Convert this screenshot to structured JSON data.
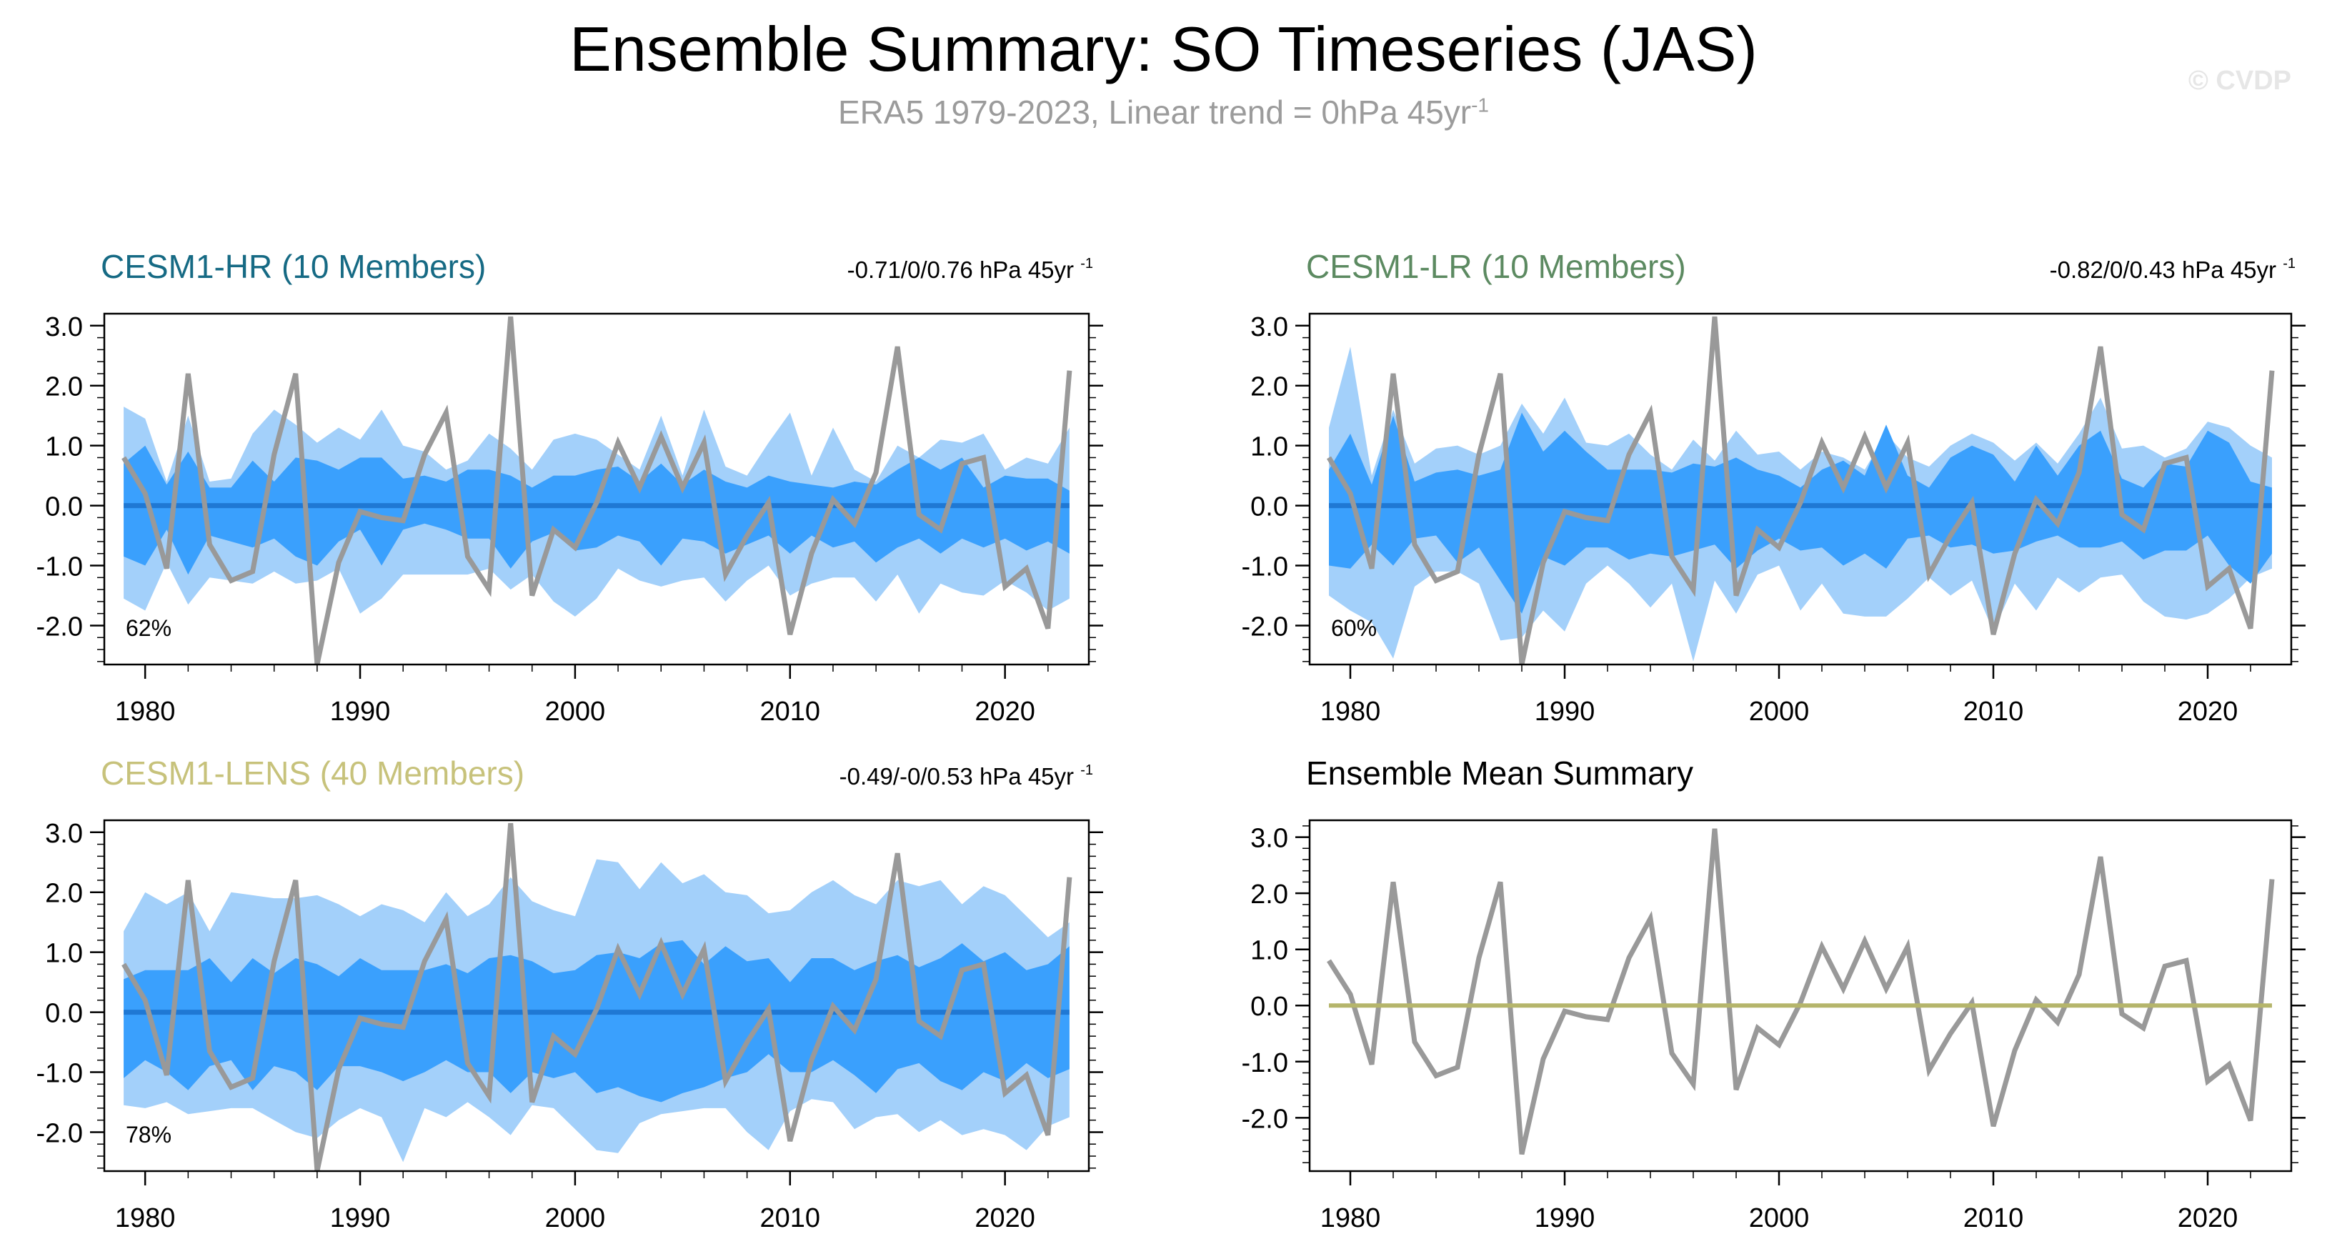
{
  "title": "Ensemble Summary: SO Timeseries (JAS)",
  "subtitle": {
    "text": "ERA5 1979-2023, Linear trend = 0hPa 45yr",
    "superscript": "-1"
  },
  "watermark": "© CVDP",
  "colors": {
    "observed_line": "#999999",
    "band_outer": "#a3d0fa",
    "band_inner": "#3aa0fd",
    "ensemble_median": "#1f78d4",
    "mean_summary_line": "#b5b56b",
    "title_hr": "#166a84",
    "title_lr": "#5c8a61",
    "title_lens": "#c7c27b"
  },
  "chart_data": [
    {
      "type": "area",
      "title": "CESM1-HR (10 Members)",
      "title_color": "#166a84",
      "trend_label": "-0.71/0/0.76 hPa 45yr",
      "trend_superscript": "-1",
      "percent_label": "62%",
      "x": [
        1979,
        1980,
        1981,
        1982,
        1983,
        1984,
        1985,
        1986,
        1987,
        1988,
        1989,
        1990,
        1991,
        1992,
        1993,
        1994,
        1995,
        1996,
        1997,
        1998,
        1999,
        2000,
        2001,
        2002,
        2003,
        2004,
        2005,
        2006,
        2007,
        2008,
        2009,
        2010,
        2011,
        2012,
        2013,
        2014,
        2015,
        2016,
        2017,
        2018,
        2019,
        2020,
        2021,
        2022,
        2023
      ],
      "xticks": [
        1980,
        1990,
        2000,
        2010,
        2020
      ],
      "yticks": [
        3.0,
        2.0,
        1.0,
        0.0,
        -1.0,
        -2.0
      ],
      "ytick_labels": [
        "3.0",
        "2.0",
        "1.0",
        "0.0",
        "-1.0",
        "-2.0"
      ],
      "ylim": [
        -2.65,
        3.2
      ],
      "xlim": [
        1978.1,
        2023.9
      ],
      "observed": [
        0.8,
        0.2,
        -1.05,
        2.2,
        -0.65,
        -1.25,
        -1.1,
        0.85,
        2.2,
        -2.65,
        -0.95,
        -0.1,
        -0.2,
        -0.25,
        0.85,
        1.55,
        -0.85,
        -1.4,
        3.15,
        -1.5,
        -0.4,
        -0.7,
        0.05,
        1.05,
        0.3,
        1.15,
        0.3,
        1.05,
        -1.15,
        -0.5,
        0.05,
        -2.15,
        -0.8,
        0.1,
        -0.3,
        0.55,
        2.65,
        -0.15,
        -0.4,
        0.7,
        0.8,
        -1.35,
        -1.05,
        -2.05,
        2.25
      ],
      "outer_upper": [
        1.65,
        1.45,
        0.4,
        1.5,
        0.4,
        0.45,
        1.2,
        1.6,
        1.35,
        1.05,
        1.3,
        1.1,
        1.6,
        1.0,
        0.9,
        0.6,
        0.75,
        1.2,
        0.95,
        0.6,
        1.1,
        1.2,
        1.1,
        0.85,
        0.6,
        1.5,
        0.5,
        1.6,
        0.65,
        0.5,
        1.05,
        1.55,
        0.5,
        1.3,
        0.6,
        0.4,
        1.0,
        0.8,
        1.1,
        1.05,
        1.2,
        0.6,
        0.8,
        0.7,
        1.3
      ],
      "inner_upper": [
        0.7,
        1.0,
        0.35,
        0.9,
        0.3,
        0.3,
        0.75,
        0.4,
        0.8,
        0.75,
        0.6,
        0.8,
        0.8,
        0.45,
        0.5,
        0.4,
        0.6,
        0.6,
        0.5,
        0.3,
        0.5,
        0.5,
        0.6,
        0.65,
        0.4,
        0.7,
        0.35,
        0.6,
        0.4,
        0.3,
        0.5,
        0.4,
        0.35,
        0.3,
        0.4,
        0.35,
        0.6,
        0.8,
        0.6,
        0.8,
        0.3,
        0.5,
        0.45,
        0.45,
        0.25
      ],
      "median": [
        0,
        0,
        0,
        0,
        0,
        0,
        0,
        0,
        0,
        0,
        0,
        0,
        0,
        0,
        0,
        0,
        0,
        0,
        0,
        0,
        0,
        0,
        0,
        0,
        0,
        0,
        0,
        0,
        0,
        0,
        0,
        0,
        0,
        0,
        0,
        0,
        0,
        0,
        0,
        0,
        0,
        0,
        0,
        0,
        0
      ],
      "inner_lower": [
        -0.85,
        -1.0,
        -0.4,
        -1.15,
        -0.5,
        -0.6,
        -0.7,
        -0.55,
        -0.85,
        -1.0,
        -0.6,
        -0.4,
        -1.0,
        -0.4,
        -0.3,
        -0.4,
        -0.55,
        -0.55,
        -1.05,
        -0.6,
        -0.45,
        -0.75,
        -0.7,
        -0.5,
        -0.6,
        -1.0,
        -0.55,
        -0.6,
        -0.8,
        -0.65,
        -0.5,
        -0.8,
        -0.5,
        -0.7,
        -0.6,
        -0.95,
        -0.7,
        -0.55,
        -0.8,
        -0.55,
        -0.7,
        -0.55,
        -0.75,
        -0.6,
        -0.8
      ],
      "outer_lower": [
        -1.55,
        -1.75,
        -0.95,
        -1.65,
        -1.2,
        -1.25,
        -1.3,
        -1.1,
        -1.3,
        -1.25,
        -1.05,
        -1.8,
        -1.55,
        -1.15,
        -1.15,
        -1.15,
        -1.15,
        -1.05,
        -1.4,
        -1.15,
        -1.6,
        -1.85,
        -1.55,
        -1.05,
        -1.25,
        -1.35,
        -1.25,
        -1.2,
        -1.6,
        -1.25,
        -1.0,
        -1.5,
        -1.3,
        -1.2,
        -1.2,
        -1.6,
        -1.15,
        -1.8,
        -1.3,
        -1.45,
        -1.5,
        -1.25,
        -1.45,
        -1.75,
        -1.55
      ]
    },
    {
      "type": "area",
      "title": "CESM1-LR (10 Members)",
      "title_color": "#5c8a61",
      "trend_label": "-0.82/0/0.43 hPa 45yr",
      "trend_superscript": "-1",
      "percent_label": "60%",
      "x": [
        1979,
        1980,
        1981,
        1982,
        1983,
        1984,
        1985,
        1986,
        1987,
        1988,
        1989,
        1990,
        1991,
        1992,
        1993,
        1994,
        1995,
        1996,
        1997,
        1998,
        1999,
        2000,
        2001,
        2002,
        2003,
        2004,
        2005,
        2006,
        2007,
        2008,
        2009,
        2010,
        2011,
        2012,
        2013,
        2014,
        2015,
        2016,
        2017,
        2018,
        2019,
        2020,
        2021,
        2022,
        2023
      ],
      "xticks": [
        1980,
        1990,
        2000,
        2010,
        2020
      ],
      "yticks": [
        3.0,
        2.0,
        1.0,
        0.0,
        -1.0,
        -2.0
      ],
      "ytick_labels": [
        "3.0",
        "2.0",
        "1.0",
        "0.0",
        "-1.0",
        "-2.0"
      ],
      "ylim": [
        -2.65,
        3.2
      ],
      "xlim": [
        1978.1,
        2023.9
      ],
      "observed": [
        0.8,
        0.2,
        -1.05,
        2.2,
        -0.65,
        -1.25,
        -1.1,
        0.85,
        2.2,
        -2.65,
        -0.95,
        -0.1,
        -0.2,
        -0.25,
        0.85,
        1.55,
        -0.85,
        -1.4,
        3.15,
        -1.5,
        -0.4,
        -0.7,
        0.05,
        1.05,
        0.3,
        1.15,
        0.3,
        1.05,
        -1.15,
        -0.5,
        0.05,
        -2.15,
        -0.8,
        0.1,
        -0.3,
        0.55,
        2.65,
        -0.15,
        -0.4,
        0.7,
        0.8,
        -1.35,
        -1.05,
        -2.05,
        2.25
      ],
      "outer_upper": [
        1.3,
        2.65,
        0.5,
        1.6,
        0.7,
        0.95,
        1.0,
        0.85,
        1.0,
        1.7,
        1.2,
        1.8,
        1.05,
        1.0,
        1.2,
        0.85,
        0.6,
        1.1,
        0.75,
        1.25,
        0.85,
        0.9,
        0.6,
        0.9,
        0.8,
        0.6,
        1.2,
        0.8,
        0.65,
        1.0,
        1.2,
        1.05,
        0.75,
        1.05,
        0.7,
        1.2,
        1.8,
        0.95,
        1.0,
        0.8,
        0.95,
        1.4,
        1.3,
        1.0,
        0.8
      ],
      "inner_upper": [
        0.6,
        1.2,
        0.35,
        1.5,
        0.4,
        0.55,
        0.6,
        0.5,
        0.6,
        1.55,
        0.9,
        1.25,
        0.9,
        0.6,
        0.6,
        0.6,
        0.55,
        0.7,
        0.65,
        0.8,
        0.6,
        0.5,
        0.3,
        0.6,
        0.75,
        0.5,
        1.35,
        0.5,
        0.3,
        0.8,
        1.0,
        0.85,
        0.4,
        1.0,
        0.5,
        1.0,
        1.25,
        0.45,
        0.3,
        0.7,
        0.65,
        1.25,
        1.05,
        0.4,
        0.3
      ],
      "median": [
        0,
        0,
        0,
        0,
        0,
        0,
        0,
        0,
        0,
        0,
        0,
        0,
        0,
        0,
        0,
        0,
        0,
        0,
        0,
        0,
        0,
        0,
        0,
        0,
        0,
        0,
        0,
        0,
        0,
        0,
        0,
        0,
        0,
        0,
        0,
        0,
        0,
        0,
        0,
        0,
        0,
        0,
        0,
        0,
        0
      ],
      "inner_lower": [
        -1.0,
        -1.05,
        -0.65,
        -1.0,
        -0.55,
        -0.5,
        -0.95,
        -0.7,
        -1.25,
        -1.8,
        -0.85,
        -1.0,
        -0.7,
        -0.7,
        -0.9,
        -0.8,
        -0.85,
        -0.75,
        -0.65,
        -1.05,
        -0.75,
        -0.55,
        -0.75,
        -0.7,
        -1.0,
        -0.8,
        -1.05,
        -0.55,
        -0.5,
        -0.7,
        -0.65,
        -0.8,
        -0.75,
        -0.6,
        -0.5,
        -0.7,
        -0.7,
        -0.6,
        -0.9,
        -0.75,
        -0.75,
        -0.5,
        -1.0,
        -1.3,
        -0.8
      ],
      "outer_lower": [
        -1.5,
        -1.75,
        -1.95,
        -2.55,
        -1.35,
        -1.1,
        -1.1,
        -1.3,
        -2.25,
        -2.2,
        -1.75,
        -2.1,
        -1.3,
        -1.0,
        -1.3,
        -1.7,
        -1.3,
        -2.6,
        -1.25,
        -1.8,
        -1.15,
        -1.0,
        -1.75,
        -1.3,
        -1.8,
        -1.85,
        -1.85,
        -1.55,
        -1.2,
        -1.5,
        -1.25,
        -2.1,
        -1.3,
        -1.75,
        -1.2,
        -1.45,
        -1.2,
        -1.15,
        -1.6,
        -1.85,
        -1.9,
        -1.8,
        -1.55,
        -1.2,
        -1.05
      ]
    },
    {
      "type": "area",
      "title": "CESM1-LENS (40 Members)",
      "title_color": "#c7c27b",
      "trend_label": "-0.49/-0/0.53 hPa 45yr",
      "trend_superscript": "-1",
      "percent_label": "78%",
      "x": [
        1979,
        1980,
        1981,
        1982,
        1983,
        1984,
        1985,
        1986,
        1987,
        1988,
        1989,
        1990,
        1991,
        1992,
        1993,
        1994,
        1995,
        1996,
        1997,
        1998,
        1999,
        2000,
        2001,
        2002,
        2003,
        2004,
        2005,
        2006,
        2007,
        2008,
        2009,
        2010,
        2011,
        2012,
        2013,
        2014,
        2015,
        2016,
        2017,
        2018,
        2019,
        2020,
        2021,
        2022,
        2023
      ],
      "xticks": [
        1980,
        1990,
        2000,
        2010,
        2020
      ],
      "yticks": [
        3.0,
        2.0,
        1.0,
        0.0,
        -1.0,
        -2.0
      ],
      "ytick_labels": [
        "3.0",
        "2.0",
        "1.0",
        "0.0",
        "-1.0",
        "-2.0"
      ],
      "ylim": [
        -2.65,
        3.2
      ],
      "xlim": [
        1978.1,
        2023.9
      ],
      "observed": [
        0.8,
        0.2,
        -1.05,
        2.2,
        -0.65,
        -1.25,
        -1.1,
        0.85,
        2.2,
        -2.65,
        -0.95,
        -0.1,
        -0.2,
        -0.25,
        0.85,
        1.55,
        -0.85,
        -1.4,
        3.15,
        -1.5,
        -0.4,
        -0.7,
        0.05,
        1.05,
        0.3,
        1.15,
        0.3,
        1.05,
        -1.15,
        -0.5,
        0.05,
        -2.15,
        -0.8,
        0.1,
        -0.3,
        0.55,
        2.65,
        -0.15,
        -0.4,
        0.7,
        0.8,
        -1.35,
        -1.05,
        -2.05,
        2.25
      ],
      "outer_upper": [
        1.35,
        2.0,
        1.8,
        2.0,
        1.35,
        2.0,
        1.95,
        1.9,
        1.9,
        1.95,
        1.8,
        1.6,
        1.8,
        1.7,
        1.5,
        2.0,
        1.6,
        1.8,
        2.25,
        1.85,
        1.7,
        1.6,
        2.55,
        2.5,
        2.05,
        2.5,
        2.15,
        2.3,
        2.0,
        1.95,
        1.65,
        1.7,
        2.0,
        2.2,
        1.95,
        1.8,
        2.2,
        2.1,
        2.2,
        1.8,
        2.1,
        1.95,
        1.6,
        1.25,
        1.5
      ],
      "inner_upper": [
        0.55,
        0.7,
        0.7,
        0.7,
        0.9,
        0.5,
        0.9,
        0.65,
        0.9,
        0.8,
        0.6,
        0.9,
        0.7,
        0.7,
        0.7,
        0.8,
        0.65,
        0.9,
        0.95,
        0.85,
        0.65,
        0.7,
        0.95,
        1.0,
        0.9,
        1.15,
        1.2,
        0.8,
        1.1,
        0.85,
        0.9,
        0.5,
        0.9,
        0.9,
        0.7,
        0.85,
        0.95,
        0.75,
        0.9,
        1.15,
        0.85,
        1.0,
        0.7,
        0.8,
        1.1
      ],
      "median": [
        0,
        0,
        0,
        0,
        0,
        0,
        0,
        0,
        0,
        0,
        0,
        0,
        0,
        0,
        0,
        0,
        0,
        0,
        0,
        0,
        0,
        0,
        0,
        0,
        0,
        0,
        0,
        0,
        0,
        0,
        0,
        0,
        0,
        0,
        0,
        0,
        0,
        0,
        0,
        0,
        0,
        0,
        0,
        0,
        0
      ],
      "inner_lower": [
        -1.1,
        -0.8,
        -1.0,
        -1.3,
        -0.9,
        -0.8,
        -1.3,
        -0.9,
        -1.0,
        -1.3,
        -0.9,
        -0.9,
        -1.0,
        -1.15,
        -1.0,
        -0.8,
        -1.0,
        -1.0,
        -1.35,
        -1.0,
        -1.1,
        -1.0,
        -1.35,
        -1.25,
        -1.4,
        -1.5,
        -1.35,
        -1.25,
        -1.1,
        -1.0,
        -0.7,
        -1.0,
        -1.0,
        -0.8,
        -1.05,
        -1.35,
        -0.95,
        -0.85,
        -1.15,
        -1.3,
        -1.0,
        -1.15,
        -0.85,
        -1.1,
        -0.95
      ],
      "outer_lower": [
        -1.55,
        -1.6,
        -1.5,
        -1.7,
        -1.65,
        -1.6,
        -1.6,
        -1.8,
        -2.0,
        -2.1,
        -1.8,
        -1.6,
        -1.75,
        -2.5,
        -1.6,
        -1.75,
        -1.5,
        -1.75,
        -2.05,
        -1.55,
        -1.6,
        -1.95,
        -2.3,
        -2.35,
        -1.85,
        -1.7,
        -1.65,
        -1.6,
        -1.6,
        -2.0,
        -2.3,
        -1.65,
        -1.45,
        -1.5,
        -1.95,
        -1.75,
        -1.7,
        -2.0,
        -1.8,
        -2.05,
        -1.95,
        -2.05,
        -2.3,
        -1.9,
        -1.75
      ]
    },
    {
      "type": "line",
      "title": "Ensemble Mean Summary",
      "title_color": "#000000",
      "x": [
        1979,
        1980,
        1981,
        1982,
        1983,
        1984,
        1985,
        1986,
        1987,
        1988,
        1989,
        1990,
        1991,
        1992,
        1993,
        1994,
        1995,
        1996,
        1997,
        1998,
        1999,
        2000,
        2001,
        2002,
        2003,
        2004,
        2005,
        2006,
        2007,
        2008,
        2009,
        2010,
        2011,
        2012,
        2013,
        2014,
        2015,
        2016,
        2017,
        2018,
        2019,
        2020,
        2021,
        2022,
        2023
      ],
      "xticks": [
        1980,
        1990,
        2000,
        2010,
        2020
      ],
      "yticks": [
        3.0,
        2.0,
        1.0,
        0.0,
        -1.0,
        -2.0
      ],
      "ytick_labels": [
        "3.0",
        "2.0",
        "1.0",
        "0.0",
        "-1.0",
        "-2.0"
      ],
      "ylim": [
        -2.95,
        3.3
      ],
      "xlim": [
        1978.1,
        2023.9
      ],
      "observed": [
        0.8,
        0.2,
        -1.05,
        2.2,
        -0.65,
        -1.25,
        -1.1,
        0.85,
        2.2,
        -2.65,
        -0.95,
        -0.1,
        -0.2,
        -0.25,
        0.85,
        1.55,
        -0.85,
        -1.4,
        3.15,
        -1.5,
        -0.4,
        -0.7,
        0.05,
        1.05,
        0.3,
        1.15,
        0.3,
        1.05,
        -1.15,
        -0.5,
        0.05,
        -2.15,
        -0.8,
        0.1,
        -0.3,
        0.55,
        2.65,
        -0.15,
        -0.4,
        0.7,
        0.8,
        -1.35,
        -1.05,
        -2.05,
        2.25
      ],
      "ensemble_mean": [
        0,
        0,
        0,
        0,
        0,
        0,
        0,
        0,
        0,
        0,
        0,
        0,
        0,
        0,
        0,
        0,
        0,
        0,
        0,
        0,
        0,
        0,
        0,
        0,
        0,
        0,
        0,
        0,
        0,
        0,
        0,
        0,
        0,
        0,
        0,
        0,
        0,
        0,
        0,
        0,
        0,
        0,
        0,
        0,
        0
      ]
    }
  ]
}
